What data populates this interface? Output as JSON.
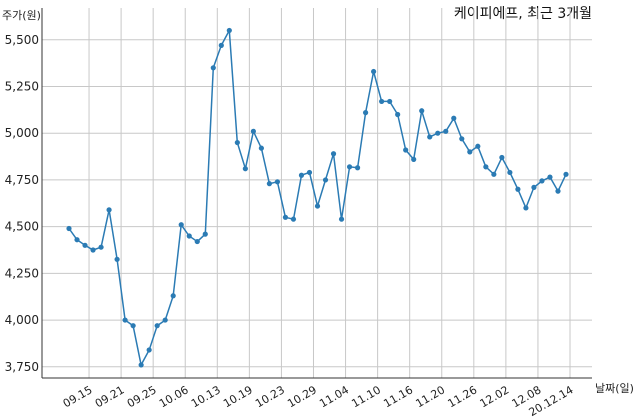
{
  "chart_data": {
    "type": "line",
    "title": "케이피에프, 최근 3개월",
    "ylabel": "주가(원)",
    "xlabel": "날짜(일)",
    "ylim": [
      3690,
      5670
    ],
    "yticks": [
      3750,
      4000,
      4250,
      4500,
      4750,
      5000,
      5250,
      5500
    ],
    "ytick_labels": [
      "3,750",
      "4,000",
      "4,250",
      "4,500",
      "4,750",
      "5,000",
      "5,250",
      "5,500"
    ],
    "xtick_labels": [
      "09.15",
      "09.21",
      "09.25",
      "10.06",
      "10.13",
      "10.19",
      "10.23",
      "10.29",
      "11.04",
      "11.10",
      "11.16",
      "11.20",
      "11.26",
      "12.02",
      "12.08",
      "20.12.14"
    ],
    "xtick_indices": [
      3,
      7,
      11,
      15,
      19,
      23,
      27,
      31,
      35,
      39,
      43,
      47,
      51,
      55,
      59,
      63
    ],
    "grid": true,
    "series": [
      {
        "color": "#2b7bb4",
        "values": [
          4490,
          4430,
          4400,
          4375,
          4390,
          4590,
          4325,
          4000,
          3970,
          3760,
          3840,
          3970,
          4000,
          4130,
          4510,
          4450,
          4420,
          4460,
          5350,
          5470,
          5550,
          4950,
          4810,
          5010,
          4920,
          4730,
          4740,
          4550,
          4540,
          4775,
          4790,
          4610,
          4750,
          4890,
          4540,
          4820,
          4815,
          5110,
          5330,
          5170,
          5170,
          5100,
          4910,
          4860,
          5120,
          4980,
          5000,
          5010,
          5080,
          4970,
          4900,
          4930,
          4820,
          4780,
          4870,
          4790,
          4700,
          4600,
          4710,
          4745,
          4765,
          4690,
          4780
        ]
      }
    ]
  }
}
